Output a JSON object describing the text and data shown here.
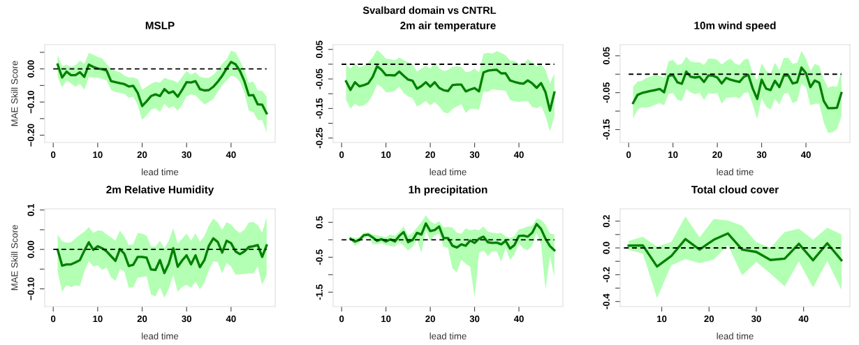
{
  "chart_data": [
    {
      "type": "line",
      "title": "MSLP",
      "xlabel": "lead time",
      "ylabel": "MAE Skill Score",
      "annotations": [
        "Svalbard domain vs CNTRL"
      ],
      "x": [
        1,
        2,
        3,
        4,
        5,
        6,
        7,
        8,
        9,
        10,
        11,
        12,
        13,
        14,
        15,
        16,
        17,
        18,
        19,
        20,
        21,
        22,
        23,
        24,
        25,
        26,
        27,
        28,
        29,
        30,
        31,
        32,
        33,
        34,
        35,
        36,
        37,
        38,
        39,
        40,
        41,
        42,
        43,
        44,
        45,
        46,
        47,
        48
      ],
      "xlim": [
        -1.92,
        49.92
      ],
      "xticks": [
        0,
        10,
        20,
        30,
        40
      ],
      "ylim": [
        -0.222,
        0.073
      ],
      "yticks": [
        {
          "value": 0.05,
          "label": null
        },
        {
          "value": 0,
          "label": "0.00"
        },
        {
          "value": -0.05,
          "label": null
        },
        {
          "value": -0.1,
          "label": "−0.10"
        },
        {
          "value": -0.15,
          "label": null
        },
        {
          "value": -0.2,
          "label": "−0.20"
        }
      ],
      "series": [
        {
          "type": "line",
          "color": "#008000",
          "values": [
            0.013,
            -0.026,
            -0.008,
            -0.019,
            -0.019,
            -0.01,
            -0.024,
            0.013,
            0.006,
            0.001,
            -0.001,
            -0.005,
            -0.037,
            -0.04,
            -0.043,
            -0.046,
            -0.053,
            -0.051,
            -0.072,
            -0.112,
            -0.098,
            -0.082,
            -0.077,
            -0.082,
            -0.061,
            -0.073,
            -0.068,
            -0.084,
            -0.063,
            -0.04,
            -0.041,
            -0.037,
            -0.061,
            -0.065,
            -0.064,
            -0.054,
            -0.039,
            -0.021,
            0.001,
            0.021,
            0.014,
            -0.006,
            -0.037,
            -0.08,
            -0.079,
            -0.107,
            -0.108,
            -0.134
          ],
          "upper": [
            0.043,
            0.008,
            0.013,
            0.006,
            0.011,
            0.025,
            0.015,
            0.048,
            0.043,
            0.036,
            0.032,
            0.015,
            0.001,
            -0.006,
            -0.01,
            -0.02,
            -0.026,
            -0.026,
            -0.031,
            -0.063,
            -0.054,
            -0.045,
            -0.039,
            -0.042,
            -0.027,
            -0.032,
            -0.035,
            -0.042,
            -0.024,
            -0.006,
            -0.017,
            -0.01,
            -0.024,
            -0.027,
            -0.027,
            -0.018,
            -0.004,
            0.015,
            0.029,
            0.055,
            0.05,
            0.025,
            -0.003,
            -0.042,
            -0.038,
            -0.065,
            -0.066,
            -0.084
          ],
          "lower": [
            -0.024,
            -0.056,
            -0.035,
            -0.044,
            -0.054,
            -0.045,
            -0.063,
            -0.024,
            -0.026,
            -0.026,
            -0.03,
            -0.035,
            -0.063,
            -0.07,
            -0.072,
            -0.075,
            -0.087,
            -0.084,
            -0.108,
            -0.154,
            -0.14,
            -0.123,
            -0.119,
            -0.13,
            -0.105,
            -0.119,
            -0.112,
            -0.126,
            -0.108,
            -0.082,
            -0.077,
            -0.08,
            -0.094,
            -0.107,
            -0.1,
            -0.091,
            -0.07,
            -0.049,
            -0.035,
            -0.02,
            -0.024,
            -0.039,
            -0.073,
            -0.126,
            -0.13,
            -0.154,
            -0.154,
            -0.192
          ]
        },
        {
          "type": "line",
          "color": "#000000",
          "line_style": "dashed",
          "x": [
            0,
            48
          ],
          "values": [
            0,
            0
          ]
        }
      ]
    },
    {
      "type": "line",
      "title": "2m air temperature",
      "xlabel": "lead time",
      "x": [
        1,
        2,
        3,
        4,
        5,
        6,
        7,
        8,
        9,
        10,
        11,
        12,
        13,
        14,
        15,
        16,
        17,
        18,
        19,
        20,
        21,
        22,
        23,
        24,
        25,
        26,
        27,
        28,
        29,
        30,
        31,
        32,
        33,
        34,
        35,
        36,
        37,
        38,
        39,
        40,
        41,
        42,
        43,
        44,
        45,
        46,
        47,
        48
      ],
      "xlim": [
        -1.92,
        49.92
      ],
      "xticks": [
        0,
        10,
        20,
        30,
        40
      ],
      "ylim": [
        -0.265,
        0.066
      ],
      "yticks": [
        0.05,
        {
          "value": 0,
          "label": null
        },
        -0.05,
        {
          "value": -0.1,
          "label": null
        },
        -0.15,
        {
          "value": -0.2,
          "label": null
        },
        -0.25
      ],
      "series": [
        {
          "type": "line",
          "color": "#008000",
          "values": [
            -0.058,
            -0.087,
            -0.061,
            -0.075,
            -0.071,
            -0.065,
            -0.043,
            -0.007,
            -0.019,
            -0.037,
            -0.037,
            -0.038,
            -0.025,
            -0.039,
            -0.052,
            -0.056,
            -0.083,
            -0.074,
            -0.061,
            -0.076,
            -0.061,
            -0.08,
            -0.088,
            -0.091,
            -0.071,
            -0.069,
            -0.069,
            -0.092,
            -0.086,
            -0.081,
            -0.092,
            -0.028,
            -0.022,
            -0.02,
            -0.019,
            -0.031,
            -0.031,
            -0.055,
            -0.06,
            -0.064,
            -0.066,
            -0.055,
            -0.065,
            -0.08,
            -0.064,
            -0.095,
            -0.157,
            -0.096
          ],
          "upper": [
            -0.003,
            -0.015,
            0.002,
            -0.011,
            -0.005,
            0.005,
            0.024,
            0.048,
            0.035,
            0.019,
            0.017,
            0.013,
            0.023,
            0.014,
            0.006,
            -0.001,
            -0.025,
            -0.015,
            -0.005,
            -0.015,
            0.005,
            -0.013,
            -0.023,
            -0.02,
            -0.009,
            -0.007,
            -0.009,
            -0.027,
            -0.025,
            -0.015,
            -0.028,
            0.035,
            0.039,
            0.036,
            0.044,
            0.038,
            0.03,
            0.013,
            0.011,
            0.001,
            0.001,
            0.017,
            0.006,
            -0.007,
            0.001,
            -0.02,
            -0.066,
            -0.031
          ],
          "lower": [
            -0.121,
            -0.151,
            -0.133,
            -0.143,
            -0.139,
            -0.128,
            -0.104,
            -0.068,
            -0.077,
            -0.095,
            -0.094,
            -0.09,
            -0.076,
            -0.098,
            -0.109,
            -0.115,
            -0.143,
            -0.135,
            -0.125,
            -0.139,
            -0.128,
            -0.143,
            -0.162,
            -0.167,
            -0.151,
            -0.143,
            -0.135,
            -0.165,
            -0.151,
            -0.151,
            -0.154,
            -0.091,
            -0.094,
            -0.084,
            -0.087,
            -0.088,
            -0.09,
            -0.121,
            -0.125,
            -0.128,
            -0.125,
            -0.125,
            -0.145,
            -0.149,
            -0.141,
            -0.176,
            -0.228,
            -0.176
          ]
        },
        {
          "type": "line",
          "color": "#000000",
          "line_style": "dashed",
          "x": [
            0,
            48
          ],
          "values": [
            0,
            0
          ]
        }
      ]
    },
    {
      "type": "line",
      "title": "10m wind speed",
      "xlabel": "lead time",
      "x": [
        1,
        2,
        3,
        4,
        5,
        6,
        7,
        8,
        9,
        10,
        11,
        12,
        13,
        14,
        15,
        16,
        17,
        18,
        19,
        20,
        21,
        22,
        23,
        24,
        25,
        26,
        27,
        28,
        29,
        30,
        31,
        32,
        33,
        34,
        35,
        36,
        37,
        38,
        39,
        40,
        41,
        42,
        43,
        44,
        45,
        46,
        47,
        48
      ],
      "xlim": [
        -1.92,
        49.92
      ],
      "xticks": [
        0,
        10,
        20,
        30,
        40
      ],
      "ylim": [
        -0.185,
        0.08
      ],
      "yticks": [
        0.05,
        {
          "value": 0,
          "label": null
        },
        -0.05,
        {
          "value": -0.1,
          "label": null
        },
        -0.15
      ],
      "series": [
        {
          "type": "line",
          "color": "#008000",
          "values": [
            -0.078,
            -0.056,
            -0.051,
            -0.048,
            -0.045,
            -0.043,
            -0.04,
            -0.049,
            -0.005,
            -0.002,
            -0.022,
            -0.026,
            0.007,
            -0.007,
            -0.009,
            -0.007,
            -0.021,
            -0.003,
            -0.004,
            -0.009,
            -0.025,
            -0.01,
            -0.015,
            -0.018,
            -0.021,
            -0.007,
            -0.002,
            -0.039,
            -0.067,
            -0.015,
            -0.039,
            -0.043,
            -0.018,
            -0.035,
            -0.004,
            -0.003,
            -0.025,
            -0.022,
            0.018,
            0.003,
            -0.035,
            -0.017,
            -0.023,
            -0.072,
            -0.092,
            -0.092,
            -0.091,
            -0.051
          ],
          "upper": [
            -0.034,
            -0.02,
            -0.018,
            -0.01,
            -0.006,
            -0.002,
            -0.004,
            -0.01,
            0.035,
            0.039,
            0.025,
            0.028,
            0.048,
            0.034,
            0.032,
            0.032,
            0.025,
            0.042,
            0.042,
            0.039,
            0.026,
            0.036,
            0.042,
            0.029,
            0.025,
            0.039,
            0.042,
            0.003,
            -0.016,
            0.029,
            0.01,
            0.001,
            0.031,
            0.011,
            0.044,
            0.044,
            0.028,
            0.031,
            0.063,
            0.042,
            0.009,
            0.028,
            0.023,
            -0.013,
            -0.037,
            -0.032,
            -0.034,
            0.01
          ],
          "lower": [
            -0.12,
            -0.096,
            -0.089,
            -0.091,
            -0.088,
            -0.083,
            -0.078,
            -0.084,
            -0.053,
            -0.051,
            -0.069,
            -0.073,
            -0.04,
            -0.049,
            -0.054,
            -0.05,
            -0.07,
            -0.051,
            -0.053,
            -0.051,
            -0.08,
            -0.064,
            -0.063,
            -0.061,
            -0.066,
            -0.051,
            -0.049,
            -0.083,
            -0.121,
            -0.064,
            -0.088,
            -0.096,
            -0.067,
            -0.082,
            -0.053,
            -0.051,
            -0.078,
            -0.073,
            -0.025,
            -0.035,
            -0.084,
            -0.08,
            -0.08,
            -0.13,
            -0.159,
            -0.157,
            -0.149,
            -0.115
          ]
        },
        {
          "type": "line",
          "color": "#000000",
          "line_style": "dashed",
          "x": [
            0,
            48
          ],
          "values": [
            0,
            0
          ]
        }
      ]
    },
    {
      "type": "line",
      "title": "2m Relative Humidity",
      "xlabel": "lead time",
      "ylabel": "MAE Skill Score",
      "x": [
        1,
        2,
        3,
        4,
        5,
        6,
        7,
        8,
        9,
        10,
        11,
        12,
        13,
        14,
        15,
        16,
        17,
        18,
        19,
        20,
        21,
        22,
        23,
        24,
        25,
        26,
        27,
        28,
        29,
        30,
        31,
        32,
        33,
        34,
        35,
        36,
        37,
        38,
        39,
        40,
        41,
        42,
        43,
        44,
        45,
        46,
        47,
        48
      ],
      "xlim": [
        -1.92,
        49.92
      ],
      "xticks": [
        0,
        10,
        20,
        30,
        40
      ],
      "ylim": [
        -0.145,
        0.103
      ],
      "yticks": [
        0.1,
        {
          "value": 0.05,
          "label": null
        },
        {
          "value": 0,
          "label": "0.00"
        },
        {
          "value": -0.05,
          "label": null
        },
        {
          "value": -0.1,
          "label": "−0.10"
        }
      ],
      "series": [
        {
          "type": "line",
          "color": "#008000",
          "values": [
            -0.001,
            -0.041,
            -0.038,
            -0.038,
            -0.033,
            -0.027,
            -0.003,
            0.018,
            -0.001,
            0.008,
            0.003,
            -0.005,
            -0.017,
            -0.029,
            0.001,
            -0.011,
            -0.042,
            -0.039,
            -0.019,
            -0.019,
            -0.021,
            -0.051,
            -0.052,
            -0.027,
            -0.06,
            -0.036,
            0.003,
            -0.044,
            -0.028,
            -0.015,
            -0.038,
            -0.015,
            -0.045,
            -0.027,
            0.009,
            0.028,
            0.019,
            -0.008,
            0.022,
            0.016,
            -0.005,
            -0.012,
            -0.005,
            0.006,
            0.008,
            0.011,
            -0.019,
            0.01
          ],
          "upper": [
            0.038,
            0.02,
            0.017,
            0.018,
            0.028,
            0.037,
            0.045,
            0.057,
            0.042,
            0.048,
            0.047,
            0.038,
            0.031,
            0.022,
            0.048,
            0.032,
            0.011,
            0.013,
            0.042,
            0.04,
            0.035,
            0.008,
            0.007,
            0.022,
            0.003,
            0.022,
            0.054,
            0.015,
            0.027,
            0.04,
            0.022,
            0.041,
            0.019,
            0.034,
            0.06,
            0.078,
            0.069,
            0.05,
            0.069,
            0.063,
            0.05,
            0.042,
            0.05,
            0.068,
            0.07,
            0.062,
            0.042,
            0.082
          ],
          "lower": [
            -0.055,
            -0.108,
            -0.09,
            -0.096,
            -0.091,
            -0.093,
            -0.055,
            -0.03,
            -0.043,
            -0.04,
            -0.052,
            -0.046,
            -0.07,
            -0.08,
            -0.05,
            -0.056,
            -0.097,
            -0.096,
            -0.071,
            -0.07,
            -0.068,
            -0.115,
            -0.119,
            -0.096,
            -0.123,
            -0.099,
            -0.064,
            -0.108,
            -0.095,
            -0.09,
            -0.097,
            -0.081,
            -0.101,
            -0.084,
            -0.052,
            -0.03,
            -0.032,
            -0.061,
            -0.034,
            -0.043,
            -0.064,
            -0.063,
            -0.062,
            -0.06,
            -0.061,
            -0.043,
            -0.09,
            -0.064
          ]
        },
        {
          "type": "line",
          "color": "#000000",
          "line_style": "dashed",
          "x": [
            0,
            48
          ],
          "values": [
            0,
            0
          ]
        }
      ]
    },
    {
      "type": "line",
      "title": "1h precipitation",
      "xlabel": "lead time",
      "x": [
        2,
        3,
        4,
        5,
        6,
        7,
        8,
        9,
        10,
        11,
        12,
        13,
        14,
        15,
        16,
        17,
        18,
        19,
        20,
        21,
        22,
        23,
        24,
        25,
        26,
        27,
        28,
        29,
        30,
        31,
        32,
        33,
        34,
        35,
        36,
        37,
        38,
        39,
        40,
        41,
        42,
        43,
        44,
        45,
        46,
        47,
        48
      ],
      "xlim": [
        -1.92,
        49.92
      ],
      "xticks": [
        0,
        10,
        20,
        30,
        40
      ],
      "ylim": [
        -1.913,
        0.887
      ],
      "yticks": [
        0.5,
        {
          "value": 0,
          "label": null
        },
        -0.5,
        {
          "value": -1,
          "label": null
        },
        -1.5
      ],
      "series": [
        {
          "type": "line",
          "color": "#008000",
          "values": [
            0.03,
            -0.05,
            0.0,
            0.13,
            0.15,
            0.07,
            -0.03,
            0.02,
            -0.05,
            0.01,
            -0.05,
            0.11,
            0.22,
            -0.07,
            -0.01,
            0.2,
            0.15,
            0.47,
            0.25,
            0.28,
            0.38,
            0.05,
            0.05,
            -0.17,
            -0.22,
            -0.13,
            -0.17,
            -0.02,
            -0.09,
            0.03,
            0.09,
            -0.07,
            -0.09,
            -0.08,
            -0.13,
            -0.03,
            -0.25,
            -0.15,
            0.11,
            0.12,
            0.09,
            0.2,
            0.45,
            0.31,
            0.03,
            -0.18,
            -0.3
          ],
          "upper": [
            0.09,
            0.05,
            0.07,
            0.2,
            0.21,
            0.15,
            0.13,
            0.1,
            0.07,
            0.15,
            0.11,
            0.23,
            0.38,
            0.11,
            0.2,
            0.35,
            0.5,
            0.7,
            0.53,
            0.45,
            0.53,
            0.35,
            0.37,
            0.35,
            0.2,
            0.17,
            0.33,
            0.27,
            0.3,
            0.27,
            0.38,
            0.23,
            0.2,
            0.18,
            0.2,
            0.09,
            0.05,
            0.11,
            0.3,
            0.33,
            0.38,
            0.4,
            0.61,
            0.57,
            0.43,
            0.18,
            0.15
          ],
          "lower": [
            0.0,
            -0.18,
            -0.09,
            0.05,
            0.1,
            -0.13,
            -0.13,
            -0.1,
            -0.15,
            -0.18,
            -0.2,
            -0.07,
            -0.17,
            -0.31,
            -0.2,
            0.0,
            -0.37,
            0.27,
            -0.03,
            0.13,
            0.17,
            -0.2,
            -0.23,
            -0.82,
            -0.93,
            -0.57,
            -0.69,
            -0.77,
            -1.65,
            -0.37,
            -0.3,
            -0.47,
            -0.33,
            -0.33,
            -0.63,
            -0.23,
            -0.58,
            -0.42,
            -0.1,
            -0.25,
            -0.3,
            -0.17,
            0.2,
            -0.13,
            -1.43,
            -0.47,
            -1.07
          ]
        },
        {
          "type": "line",
          "color": "#000000",
          "line_style": "dashed",
          "x": [
            0,
            48
          ],
          "values": [
            0,
            0
          ]
        }
      ]
    },
    {
      "type": "line",
      "title": "Total cloud cover",
      "xlabel": "lead time",
      "x": [
        3,
        6,
        9,
        12,
        15,
        18,
        21,
        24,
        27,
        30,
        33,
        36,
        39,
        42,
        45,
        48
      ],
      "xlim": [
        1.2,
        49.8
      ],
      "xticks": [
        10,
        20,
        30,
        40
      ],
      "ylim": [
        -0.438,
        0.292
      ],
      "yticks": [
        0.2,
        {
          "value": 0.1,
          "label": null
        },
        {
          "value": 0,
          "label": "0.0"
        },
        {
          "value": -0.1,
          "label": null
        },
        -0.2,
        {
          "value": -0.3,
          "label": null
        },
        -0.4
      ],
      "series": [
        {
          "type": "line",
          "color": "#008000",
          "values": [
            0.017,
            0.019,
            -0.139,
            -0.061,
            0.066,
            -0.012,
            0.061,
            0.108,
            -0.012,
            -0.03,
            -0.09,
            -0.08,
            0.031,
            -0.092,
            0.035,
            -0.092
          ],
          "upper": [
            0.052,
            0.083,
            0.009,
            0.043,
            0.235,
            0.078,
            0.217,
            0.205,
            0.165,
            0.043,
            0.003,
            0.118,
            0.143,
            0.061,
            0.151,
            0.101
          ],
          "lower": [
            -0.014,
            -0.043,
            -0.374,
            -0.13,
            -0.083,
            -0.113,
            -0.087,
            0.021,
            -0.205,
            -0.104,
            -0.191,
            -0.287,
            -0.101,
            -0.296,
            -0.096,
            -0.313
          ]
        },
        {
          "type": "line",
          "color": "#000000",
          "line_style": "dashed",
          "x": [
            2,
            48
          ],
          "values": [
            0,
            0
          ]
        }
      ]
    }
  ]
}
